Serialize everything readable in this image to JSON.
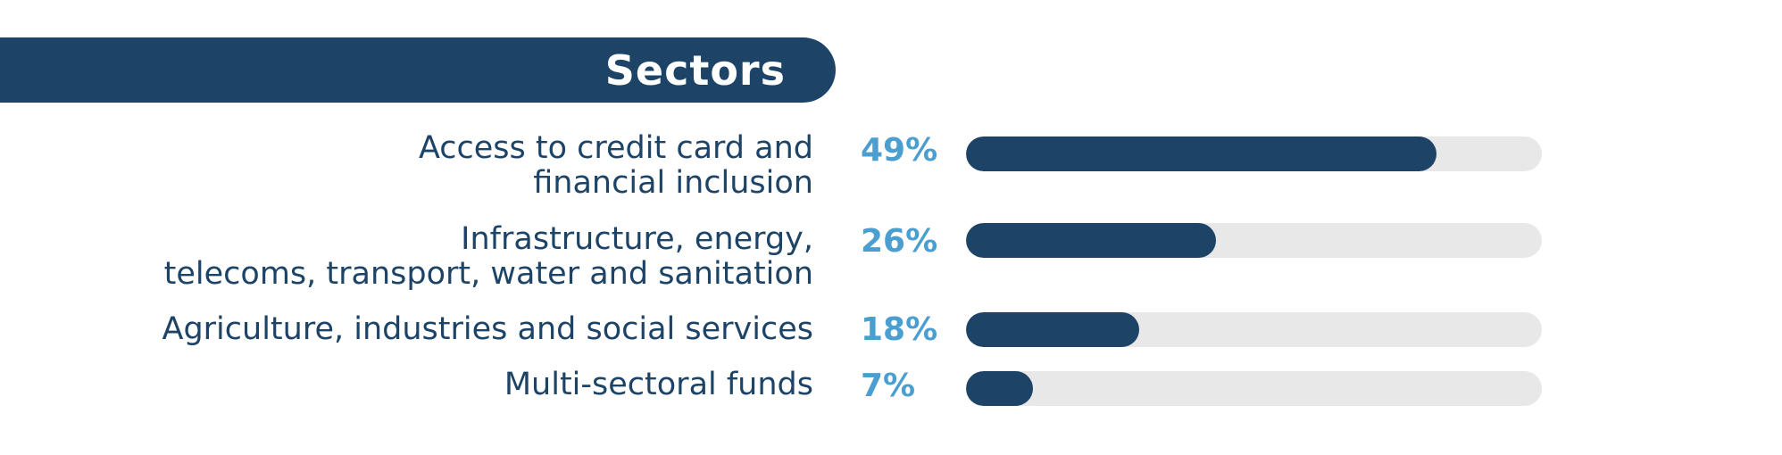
{
  "chart_data": {
    "type": "bar",
    "orientation": "horizontal",
    "title": "Sectors",
    "categories": [
      "Access to credit card and\nfinancial inclusion",
      "Infrastructure, energy,\ntelecoms, transport, water and sanitation",
      "Agriculture, industries and social services",
      "Multi-sectoral funds"
    ],
    "values": [
      49,
      26,
      18,
      7
    ],
    "value_labels": [
      "49%",
      "26%",
      "18%",
      "7%"
    ],
    "unit": "%",
    "xlim": [
      0,
      60
    ],
    "grid": false,
    "legend": "none"
  },
  "colors": {
    "banner": "#1d4467",
    "bar_fill": "#1d4467",
    "bar_track": "#e8e8e8",
    "percent_text": "#4a9fd0",
    "label_text": "#1d4467",
    "title_text": "#ffffff"
  }
}
